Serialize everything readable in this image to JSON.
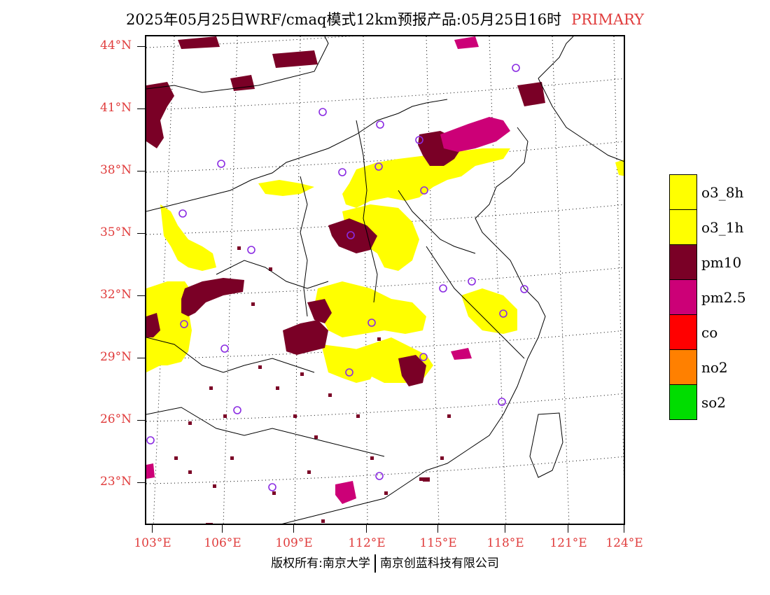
{
  "title": {
    "main": "2025年05月25日WRF/cmaq模式12km预报产品:05月25日16时",
    "tag": "PRIMARY"
  },
  "axes": {
    "lat_labels": [
      "44°N",
      "41°N",
      "38°N",
      "35°N",
      "32°N",
      "29°N",
      "26°N",
      "23°N"
    ],
    "lon_labels": [
      "103°E",
      "106°E",
      "109°E",
      "112°E",
      "115°E",
      "118°E",
      "121°E",
      "124°E"
    ]
  },
  "legend": {
    "items": [
      {
        "label": "o3_8h",
        "color": "#ffff00"
      },
      {
        "label": "o3_1h",
        "color": "#ffff00"
      },
      {
        "label": "pm10",
        "color": "#7a0026"
      },
      {
        "label": "pm2.5",
        "color": "#cc0077"
      },
      {
        "label": "co",
        "color": "#ff0000"
      },
      {
        "label": "no2",
        "color": "#ff8000"
      },
      {
        "label": "so2",
        "color": "#00dd00"
      }
    ]
  },
  "footer": {
    "left": "版权所有:南京大学",
    "right": "南京创蓝科技有限公司"
  },
  "colors": {
    "label_red": "#e03c3c",
    "station_marker": "#8a2be2"
  }
}
